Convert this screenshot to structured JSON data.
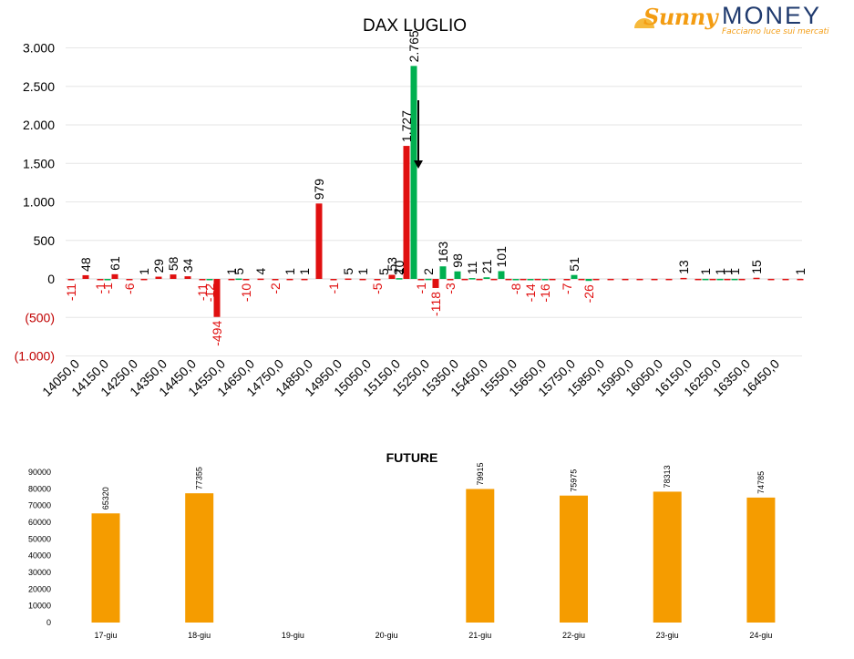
{
  "logo": {
    "brand_left": "Sunny",
    "brand_right": "MONEY",
    "tagline": "Facciamo luce sui mercati"
  },
  "colors": {
    "green": "#00b050",
    "red": "#e01010",
    "orange": "#f59c00",
    "negative_tick": "#c00000",
    "arrow": "#000000"
  },
  "chart_data": [
    {
      "type": "bar",
      "title": "DAX LUGLIO",
      "xlabel": "",
      "ylabel": "",
      "ylim": [
        -1000,
        3000
      ],
      "yticks": [
        {
          "value": 3000,
          "label": "3.000"
        },
        {
          "value": 2500,
          "label": "2.500"
        },
        {
          "value": 2000,
          "label": "2.000"
        },
        {
          "value": 1500,
          "label": "1.500"
        },
        {
          "value": 1000,
          "label": "1.000"
        },
        {
          "value": 500,
          "label": "500"
        },
        {
          "value": 0,
          "label": "0"
        },
        {
          "value": -500,
          "label": "(500)"
        },
        {
          "value": -1000,
          "label": "(1.000)"
        }
      ],
      "grid": true,
      "x_tick_labels": [
        "14050,0",
        "14150,0",
        "14250,0",
        "14350,0",
        "14450,0",
        "14550,0",
        "14650,0",
        "14750,0",
        "14850,0",
        "14950,0",
        "15050,0",
        "15150,0",
        "15250,0",
        "15350,0",
        "15450,0",
        "15550,0",
        "15650,0",
        "15750,0",
        "15850,0",
        "15950,0",
        "16050,0",
        "16150,0",
        "16250,0",
        "16350,0",
        "16450,0"
      ],
      "strike_start": 14050,
      "strike_step": 50,
      "series": [
        {
          "color": "red",
          "values": [
            -11,
            48,
            -1,
            61,
            -6,
            1,
            29,
            58,
            34,
            -11,
            -494,
            1,
            -10,
            4,
            -2,
            1,
            1,
            979,
            -1,
            5,
            1,
            -5,
            53,
            1727,
            -1,
            -118,
            -3,
            1,
            1,
            1,
            1,
            1,
            1,
            1,
            -7,
            1,
            1,
            1,
            1,
            1,
            1,
            1,
            13,
            1,
            1,
            1,
            1,
            15,
            1,
            1,
            1
          ],
          "labels": [
            "-11",
            "48",
            "-1",
            "61",
            "-6",
            "1",
            "29",
            "58",
            "34",
            "-11",
            "-494",
            "1",
            "-10",
            "4",
            "-2",
            "1",
            "1",
            "979",
            "-1",
            "5",
            "1",
            "-5",
            "53",
            "1.727",
            "-1",
            "-118",
            "-3",
            "",
            "",
            "",
            "",
            "",
            "",
            "",
            "-7",
            "",
            "",
            "",
            "",
            "",
            "",
            "",
            "13",
            "",
            "",
            "1",
            "",
            "15",
            "",
            "",
            "1"
          ]
        },
        {
          "color": "green",
          "values": [
            0,
            0,
            -1,
            0,
            0,
            0,
            0,
            0,
            0,
            -12,
            0,
            5,
            0,
            0,
            0,
            0,
            0,
            0,
            0,
            0,
            0,
            0,
            10,
            2765,
            2,
            163,
            98,
            11,
            21,
            101,
            -8,
            -14,
            -16,
            0,
            51,
            -26,
            0,
            0,
            0,
            0,
            0,
            0,
            0,
            1,
            1,
            1,
            0,
            0,
            0,
            0,
            0
          ],
          "labels": [
            "",
            "",
            "-1",
            "",
            "",
            "",
            "",
            "",
            "",
            "-12",
            "",
            "5",
            "",
            "",
            "",
            "",
            "",
            "",
            "",
            "",
            "",
            "",
            "10",
            "2.765",
            "2",
            "163",
            "98",
            "11",
            "21",
            "101",
            "-8",
            "-14",
            "-16",
            "",
            "51",
            "-26",
            "",
            "",
            "",
            "",
            "",
            "",
            "",
            "1",
            "1",
            "1",
            "",
            "",
            "",
            "",
            ""
          ]
        }
      ],
      "extra_labels": [
        {
          "index": 22,
          "text": "5"
        },
        {
          "index": 23,
          "text": "2"
        }
      ],
      "annotation": {
        "type": "down-arrow",
        "index": 23
      }
    },
    {
      "type": "bar",
      "title": "FUTURE",
      "categories": [
        "17-giu",
        "18-giu",
        "19-giu",
        "20-giu",
        "21-giu",
        "22-giu",
        "23-giu",
        "24-giu"
      ],
      "values": [
        65320,
        77355,
        null,
        null,
        79915,
        75975,
        78313,
        74785
      ],
      "yticks": [
        0,
        10000,
        20000,
        30000,
        40000,
        50000,
        60000,
        70000,
        80000,
        90000
      ],
      "ylim": [
        0,
        90000
      ],
      "grid": false
    }
  ]
}
